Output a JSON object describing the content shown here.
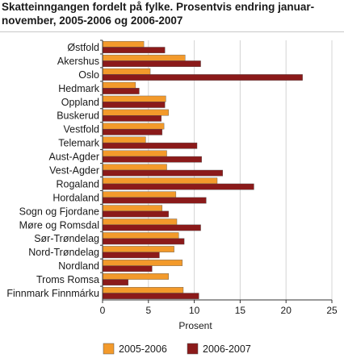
{
  "chart_data": {
    "type": "bar",
    "orientation": "horizontal",
    "title": "Skatteinngangen fordelt på fylke. Prosentvis endring januar-november, 2005-2006 og 2006-2007",
    "xlabel": "Prosent",
    "ylabel": "",
    "xlim": [
      0,
      25
    ],
    "xticks": [
      "0",
      "5",
      "10",
      "15",
      "20",
      "25"
    ],
    "grid": true,
    "legend_position": "bottom",
    "categories": [
      "Østfold",
      "Akershus",
      "Oslo",
      "Hedmark",
      "Oppland",
      "Buskerud",
      "Vestfold",
      "Telemark",
      "Aust-Agder",
      "Vest-Agder",
      "Rogaland",
      "Hordaland",
      "Sogn og Fjordane",
      "Møre og Romsdal",
      "Sør-Trøndelag",
      "Nord-Trøndelag",
      "Nordland",
      "Troms Romsa",
      "Finnmark Finnmárku"
    ],
    "series": [
      {
        "name": "2005-2006",
        "color": "#f39a2b",
        "values": [
          4.5,
          9.0,
          5.2,
          3.6,
          6.9,
          7.2,
          6.7,
          4.7,
          7.0,
          7.0,
          12.5,
          8.0,
          6.5,
          8.1,
          8.3,
          7.8,
          8.7,
          7.2,
          8.8
        ]
      },
      {
        "name": "2006-2007",
        "color": "#8b1a1a",
        "values": [
          6.8,
          10.7,
          21.8,
          4.0,
          6.8,
          6.4,
          6.5,
          10.3,
          10.8,
          13.1,
          16.5,
          11.3,
          7.2,
          10.7,
          8.9,
          6.2,
          5.4,
          2.8,
          10.5
        ]
      }
    ]
  }
}
